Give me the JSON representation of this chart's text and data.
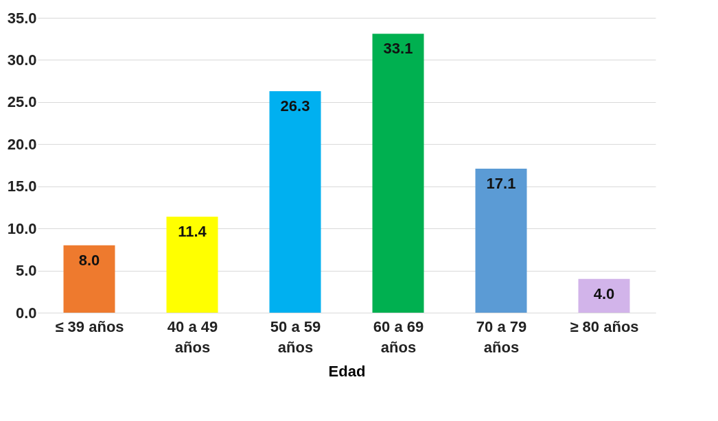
{
  "chart_data": {
    "type": "bar",
    "xlabel": "Edad",
    "categories": [
      "≤ 39 años",
      "40 a 49 años",
      "50 a 59 años",
      "60 a 69 años",
      "70 a 79 años",
      "≥ 80 años"
    ],
    "values": [
      8.0,
      11.4,
      26.3,
      33.1,
      17.1,
      4.0
    ],
    "colors": [
      "#ee7a2e",
      "#ffff00",
      "#00b0f0",
      "#00b050",
      "#5b9bd5",
      "#d2b4ea"
    ],
    "value_labels": [
      "8.0",
      "11.4",
      "26.3",
      "33.1",
      "17.1",
      "4.0"
    ],
    "ylim": [
      0,
      35
    ],
    "yticks": [
      {
        "value": 0,
        "label": "0.0"
      },
      {
        "value": 5,
        "label": "5.0"
      },
      {
        "value": 10,
        "label": "10.0"
      },
      {
        "value": 15,
        "label": "15.0"
      },
      {
        "value": 20,
        "label": "20.0"
      },
      {
        "value": 25,
        "label": "25.0"
      },
      {
        "value": 30,
        "label": "30.0"
      },
      {
        "value": 35,
        "label": "35.0"
      }
    ],
    "grid": "y"
  }
}
